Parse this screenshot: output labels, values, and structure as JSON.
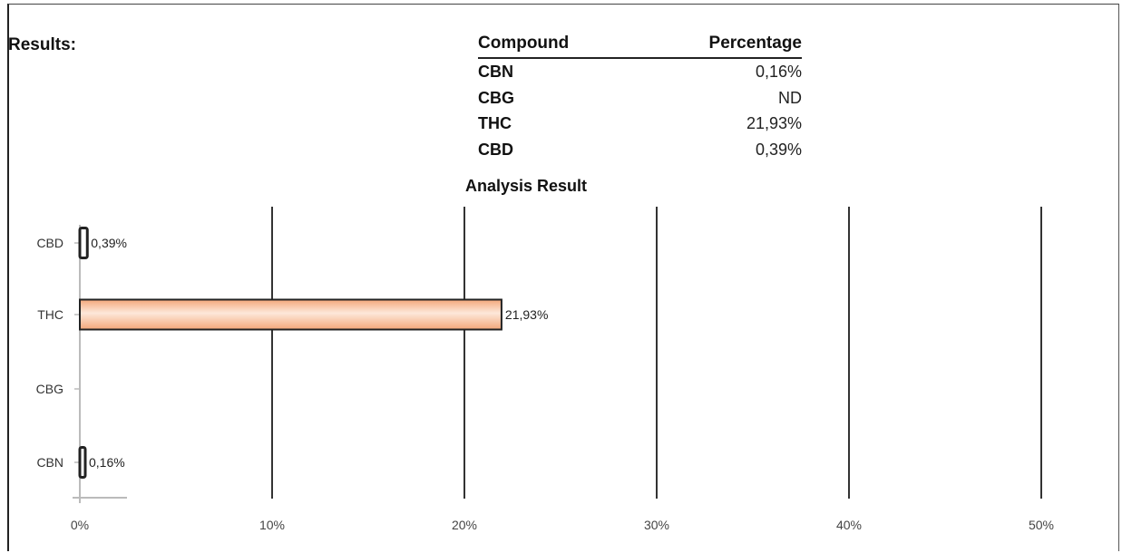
{
  "results_label": "Results:",
  "table": {
    "headers": [
      "Compound",
      "Percentage"
    ],
    "rows": [
      {
        "compound": "CBN",
        "percentage": "0,16%"
      },
      {
        "compound": "CBG",
        "percentage": "ND"
      },
      {
        "compound": "THC",
        "percentage": "21,93%"
      },
      {
        "compound": "CBD",
        "percentage": "0,39%"
      }
    ]
  },
  "chart_data": {
    "type": "bar",
    "orientation": "horizontal",
    "title": "Analysis Result",
    "categories": [
      "CBD",
      "THC",
      "CBG",
      "CBN"
    ],
    "values": [
      0.39,
      21.93,
      null,
      0.16
    ],
    "data_labels": [
      "0,39%",
      "21,93%",
      "",
      "0,16%"
    ],
    "xlim": [
      0,
      50
    ],
    "x_ticks": [
      0,
      10,
      20,
      30,
      40,
      50
    ],
    "x_tick_labels": [
      "0%",
      "10%",
      "20%",
      "30%",
      "40%",
      "50%"
    ],
    "grid": true,
    "bar_color": "#f7c9a8",
    "bar_edge_color": "#222222"
  }
}
